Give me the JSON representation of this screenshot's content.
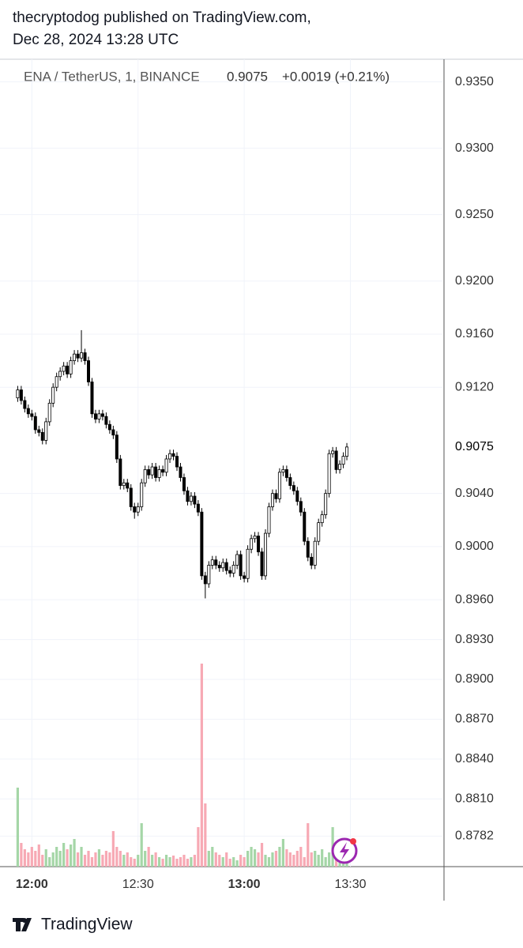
{
  "header": {
    "line1": "thecryptodog published on TradingView.com,",
    "line2": "Dec 28, 2024 13:28 UTC"
  },
  "footer": {
    "brand": "TradingView"
  },
  "chart_data": {
    "type": "candlestick",
    "symbol": "ENA / TetherUS, 1, BINANCE",
    "last": "0.9075",
    "change": "+0.0019 (+0.21%)",
    "up_color": "#ffffff",
    "down_color": "#000000",
    "volume_up_color": "#a5d6a7",
    "volume_down_color": "#f7a9b4",
    "grid": true,
    "ylim": [
      0.8759,
      0.9367
    ],
    "yticks": [
      {
        "value": 0.935,
        "label": "0.9350"
      },
      {
        "value": 0.93,
        "label": "0.9300"
      },
      {
        "value": 0.925,
        "label": "0.9250"
      },
      {
        "value": 0.92,
        "label": "0.9200"
      },
      {
        "value": 0.916,
        "label": "0.9160"
      },
      {
        "value": 0.912,
        "label": "0.9120"
      },
      {
        "value": 0.904,
        "label": "0.9040"
      },
      {
        "value": 0.9,
        "label": "0.9000"
      },
      {
        "value": 0.896,
        "label": "0.8960"
      },
      {
        "value": 0.893,
        "label": "0.8930"
      },
      {
        "value": 0.89,
        "label": "0.8900"
      },
      {
        "value": 0.887,
        "label": "0.8870"
      },
      {
        "value": 0.884,
        "label": "0.8840"
      },
      {
        "value": 0.881,
        "label": "0.8810"
      },
      0.8782
    ],
    "xlim": [
      "11:51",
      "13:56"
    ],
    "xticks": [
      "12:00",
      "12:30",
      "13:00",
      "13:30"
    ],
    "x": [
      "11:56",
      "11:57",
      "11:58",
      "11:59",
      "12:00",
      "12:01",
      "12:02",
      "12:03",
      "12:04",
      "12:05",
      "12:06",
      "12:07",
      "12:08",
      "12:09",
      "12:10",
      "12:11",
      "12:12",
      "12:13",
      "12:14",
      "12:15",
      "12:16",
      "12:17",
      "12:18",
      "12:19",
      "12:20",
      "12:21",
      "12:22",
      "12:23",
      "12:24",
      "12:25",
      "12:26",
      "12:27",
      "12:28",
      "12:29",
      "12:30",
      "12:31",
      "12:32",
      "12:33",
      "12:34",
      "12:35",
      "12:36",
      "12:37",
      "12:38",
      "12:39",
      "12:40",
      "12:41",
      "12:42",
      "12:43",
      "12:44",
      "12:45",
      "12:46",
      "12:47",
      "12:48",
      "12:49",
      "12:50",
      "12:51",
      "12:52",
      "12:53",
      "12:54",
      "12:55",
      "12:56",
      "12:57",
      "12:58",
      "12:59",
      "13:00",
      "13:01",
      "13:02",
      "13:03",
      "13:04",
      "13:05",
      "13:06",
      "13:07",
      "13:08",
      "13:09",
      "13:10",
      "13:11",
      "13:12",
      "13:13",
      "13:14",
      "13:15",
      "13:16",
      "13:17",
      "13:18",
      "13:19",
      "13:20",
      "13:21",
      "13:22",
      "13:23",
      "13:24",
      "13:25",
      "13:26",
      "13:27",
      "13:28",
      "13:29"
    ],
    "open": [
      0.9112,
      0.9118,
      0.911,
      0.9104,
      0.91,
      0.9098,
      0.9088,
      0.9086,
      0.908,
      0.9094,
      0.9108,
      0.912,
      0.9128,
      0.9132,
      0.9136,
      0.913,
      0.914,
      0.9145,
      0.9142,
      0.9146,
      0.914,
      0.9124,
      0.91,
      0.9096,
      0.91,
      0.9098,
      0.9092,
      0.9088,
      0.9084,
      0.9066,
      0.9046,
      0.9048,
      0.9044,
      0.903,
      0.9026,
      0.903,
      0.9048,
      0.9058,
      0.9054,
      0.906,
      0.9052,
      0.9058,
      0.9056,
      0.9066,
      0.907,
      0.9068,
      0.906,
      0.9052,
      0.9042,
      0.9034,
      0.9038,
      0.9032,
      0.9026,
      0.8978,
      0.8972,
      0.8986,
      0.899,
      0.8986,
      0.8984,
      0.8988,
      0.8982,
      0.898,
      0.8986,
      0.8994,
      0.8978,
      0.8976,
      0.8998,
      0.9006,
      0.9008,
      0.8996,
      0.8978,
      0.901,
      0.903,
      0.904,
      0.9036,
      0.9056,
      0.9058,
      0.9052,
      0.9046,
      0.9042,
      0.9034,
      0.9026,
      0.9004,
      0.8992,
      0.8986,
      0.9004,
      0.9018,
      0.9024,
      0.904,
      0.907,
      0.9072,
      0.9058,
      0.9062,
      0.9068
    ],
    "high": [
      0.9121,
      0.9121,
      0.9113,
      0.9107,
      0.9103,
      0.9101,
      0.9091,
      0.9089,
      0.9097,
      0.9111,
      0.9123,
      0.9131,
      0.9135,
      0.9139,
      0.9139,
      0.9143,
      0.9148,
      0.9148,
      0.9163,
      0.9149,
      0.9143,
      0.9127,
      0.9103,
      0.9103,
      0.9103,
      0.9101,
      0.9095,
      0.9091,
      0.9087,
      0.9069,
      0.9051,
      0.9051,
      0.9047,
      0.9033,
      0.9033,
      0.9051,
      0.9061,
      0.9061,
      0.9063,
      0.9063,
      0.9061,
      0.9061,
      0.9069,
      0.9073,
      0.9073,
      0.9071,
      0.9063,
      0.9055,
      0.9045,
      0.9041,
      0.9041,
      0.9035,
      0.9029,
      0.8981,
      0.8989,
      0.8993,
      0.8993,
      0.8989,
      0.8991,
      0.8991,
      0.8985,
      0.8989,
      0.8997,
      0.8997,
      0.8981,
      0.9001,
      0.9009,
      0.9011,
      0.9011,
      0.8999,
      0.9013,
      0.9033,
      0.9043,
      0.9043,
      0.9059,
      0.9061,
      0.9061,
      0.9055,
      0.9049,
      0.9045,
      0.9037,
      0.9029,
      0.9007,
      0.8995,
      0.9007,
      0.9021,
      0.9027,
      0.9043,
      0.9073,
      0.9075,
      0.9075,
      0.9065,
      0.9071,
      0.9078
    ],
    "low": [
      0.9109,
      0.9107,
      0.9101,
      0.9097,
      0.9095,
      0.9085,
      0.9083,
      0.9077,
      0.9077,
      0.9091,
      0.9105,
      0.9117,
      0.9125,
      0.9129,
      0.9127,
      0.9127,
      0.9137,
      0.9139,
      0.9139,
      0.9137,
      0.9121,
      0.9097,
      0.9093,
      0.9093,
      0.9095,
      0.9089,
      0.9085,
      0.9081,
      0.9063,
      0.9043,
      0.9043,
      0.9041,
      0.9027,
      0.9021,
      0.9023,
      0.9027,
      0.9045,
      0.9051,
      0.9051,
      0.9049,
      0.9049,
      0.9053,
      0.9053,
      0.9063,
      0.9065,
      0.9057,
      0.9049,
      0.9039,
      0.9031,
      0.9031,
      0.9029,
      0.9023,
      0.8975,
      0.8961,
      0.8969,
      0.8983,
      0.8983,
      0.8981,
      0.8981,
      0.8979,
      0.8977,
      0.8977,
      0.8983,
      0.8975,
      0.8973,
      0.8973,
      0.8995,
      0.9003,
      0.8993,
      0.8975,
      0.8975,
      0.9007,
      0.9027,
      0.9033,
      0.9033,
      0.9053,
      0.9049,
      0.9043,
      0.9039,
      0.9031,
      0.9023,
      0.9001,
      0.8989,
      0.8983,
      0.8983,
      0.9001,
      0.9015,
      0.9021,
      0.9037,
      0.9067,
      0.9055,
      0.9055,
      0.9059,
      0.9065
    ],
    "close": [
      0.9118,
      0.911,
      0.9104,
      0.91,
      0.9098,
      0.9088,
      0.9086,
      0.908,
      0.9094,
      0.9108,
      0.912,
      0.9128,
      0.9132,
      0.9136,
      0.913,
      0.914,
      0.9145,
      0.9142,
      0.9146,
      0.914,
      0.9124,
      0.91,
      0.9096,
      0.91,
      0.9098,
      0.9092,
      0.9088,
      0.9084,
      0.9066,
      0.9046,
      0.9048,
      0.9044,
      0.903,
      0.9026,
      0.903,
      0.9048,
      0.9058,
      0.9054,
      0.906,
      0.9052,
      0.9058,
      0.9056,
      0.9066,
      0.907,
      0.9068,
      0.906,
      0.9052,
      0.9042,
      0.9034,
      0.9038,
      0.9032,
      0.9026,
      0.8978,
      0.8972,
      0.8986,
      0.899,
      0.8986,
      0.8984,
      0.8988,
      0.8982,
      0.898,
      0.8986,
      0.8994,
      0.8978,
      0.8976,
      0.8998,
      0.9006,
      0.9008,
      0.8996,
      0.8978,
      0.901,
      0.903,
      0.904,
      0.9036,
      0.9056,
      0.9058,
      0.9052,
      0.9046,
      0.9042,
      0.9034,
      0.9026,
      0.9004,
      0.8992,
      0.8986,
      0.9004,
      0.9018,
      0.9024,
      0.904,
      0.907,
      0.9072,
      0.9058,
      0.9062,
      0.9068,
      0.9075
    ],
    "volume": [
      100,
      30,
      22,
      18,
      25,
      20,
      28,
      15,
      22,
      12,
      18,
      25,
      20,
      30,
      22,
      28,
      35,
      18,
      25,
      15,
      20,
      12,
      18,
      22,
      15,
      20,
      18,
      45,
      25,
      20,
      15,
      18,
      12,
      10,
      15,
      55,
      20,
      25,
      15,
      18,
      12,
      10,
      15,
      12,
      14,
      10,
      12,
      15,
      10,
      12,
      15,
      50,
      257,
      80,
      20,
      25,
      18,
      15,
      12,
      18,
      10,
      12,
      8,
      15,
      12,
      20,
      25,
      22,
      18,
      30,
      15,
      12,
      18,
      20,
      25,
      35,
      22,
      18,
      15,
      20,
      25,
      12,
      55,
      18,
      20,
      15,
      22,
      12,
      18,
      50,
      30,
      15,
      20,
      25
    ]
  }
}
